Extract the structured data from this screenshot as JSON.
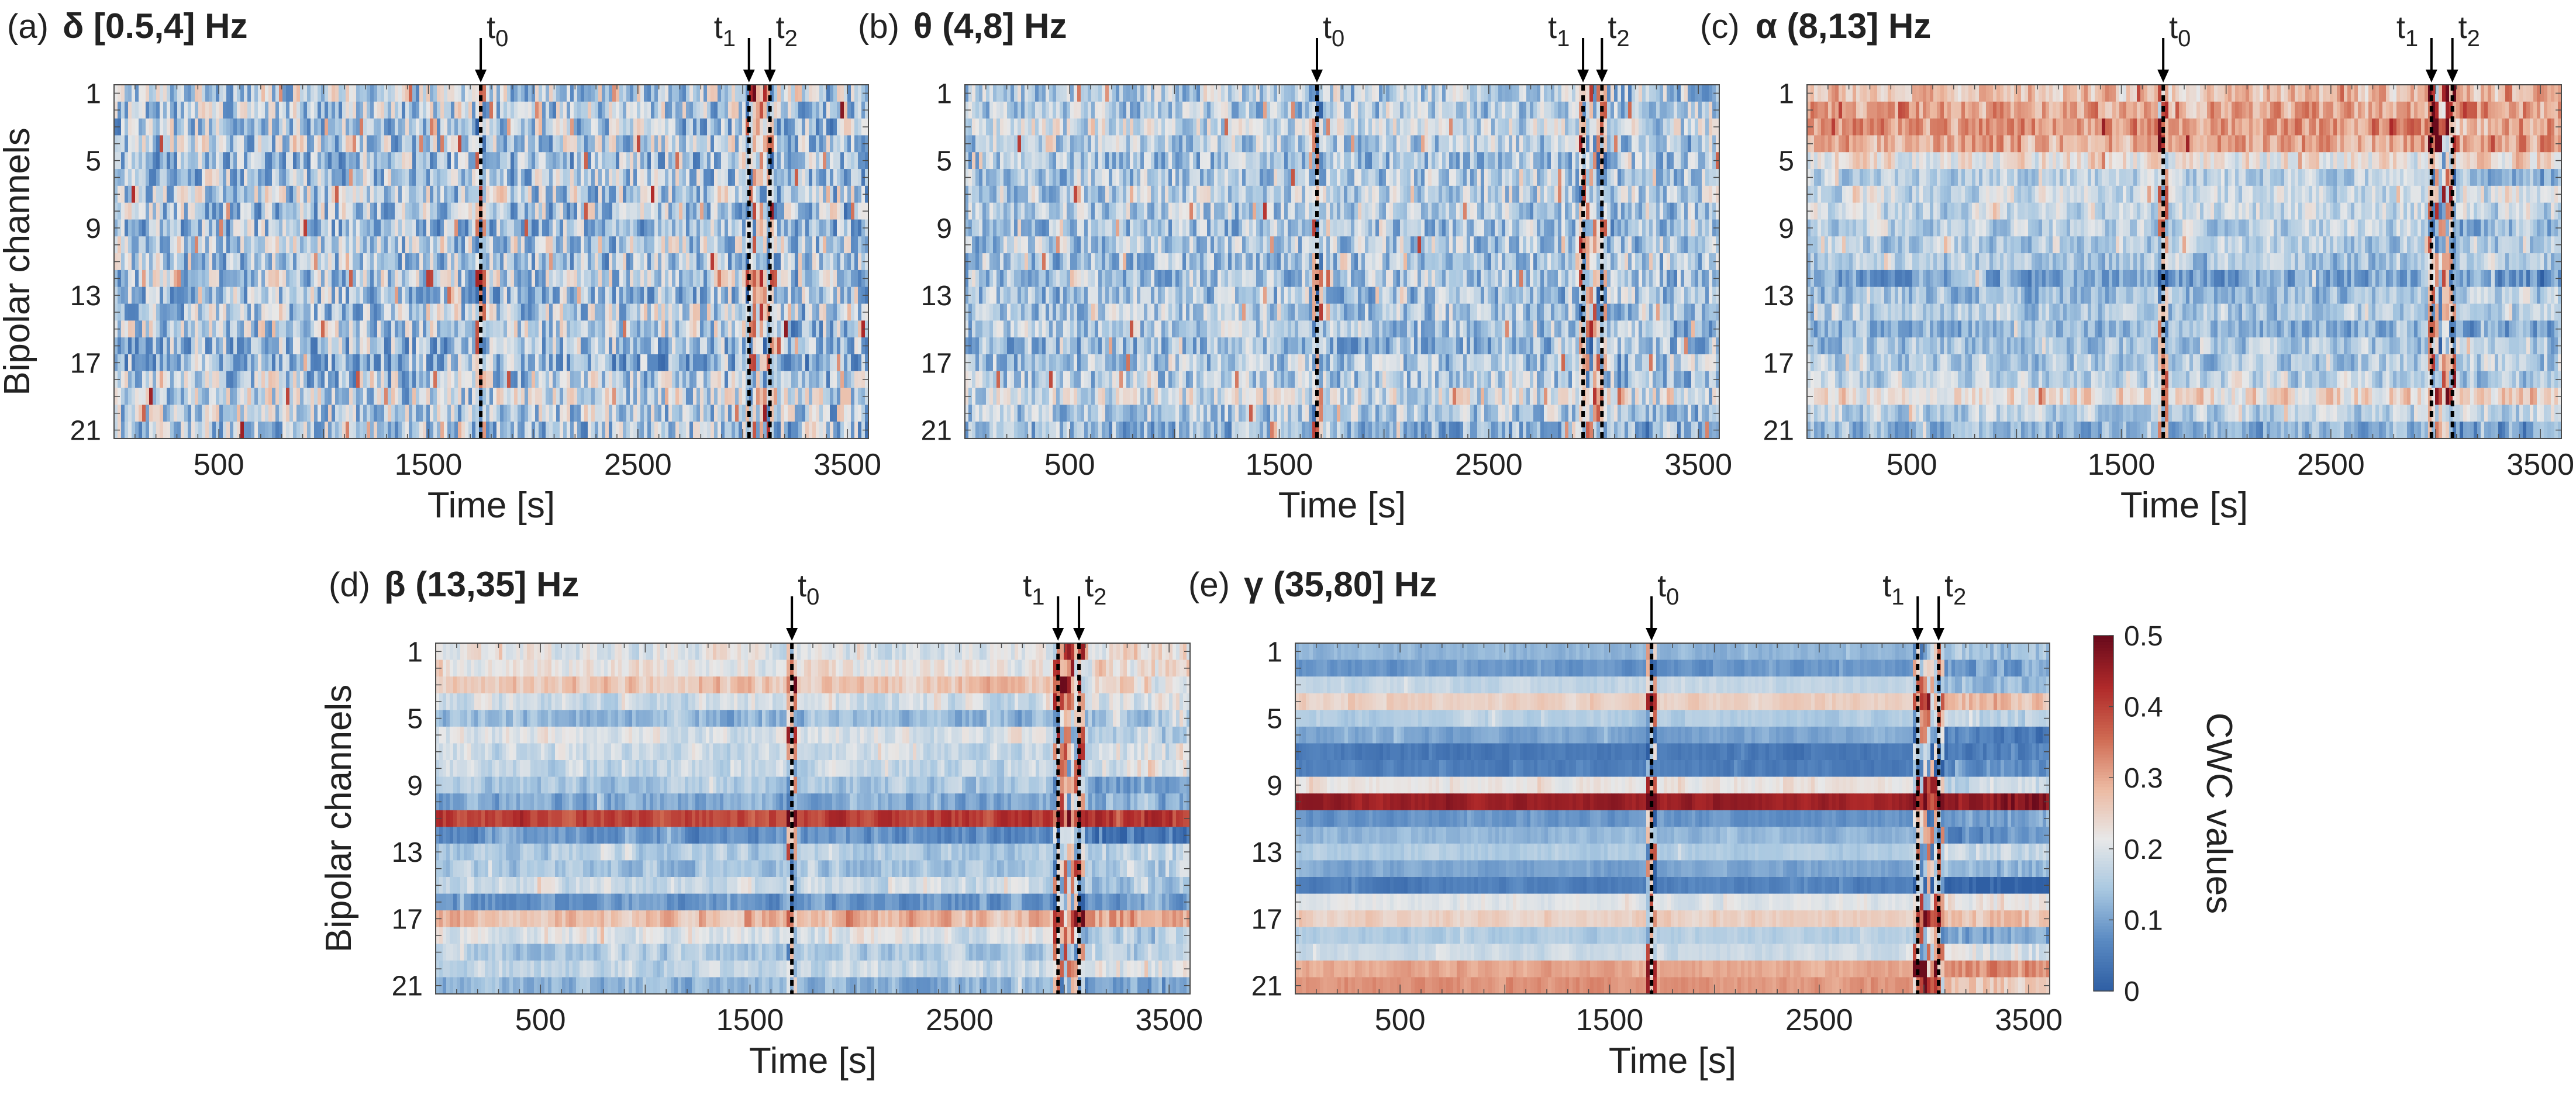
{
  "figure": {
    "shared_ylabel": "Bipolar channels",
    "shared_xlabel": "Time [s]",
    "colorbar": {
      "label": "CWC values",
      "ticks": [
        "0",
        "0.1",
        "0.2",
        "0.3",
        "0.4",
        "0.5"
      ],
      "range": [
        0,
        0.5
      ],
      "colormap": [
        "#2f5fa4",
        "#5b8bc3",
        "#a9c8e1",
        "#e8e8e8",
        "#ecb9a1",
        "#cf6a52",
        "#b02a2a",
        "#6b0b1c"
      ]
    },
    "markers": [
      "t0",
      "t1",
      "t2"
    ]
  },
  "chart_data": [
    {
      "type": "heatmap",
      "panel": "(a)",
      "title": "δ [0.5,4] Hz",
      "xlabel": "Time [s]",
      "ylabel": "Bipolar channels",
      "xlim": [
        0,
        3600
      ],
      "ylim": [
        1,
        21
      ],
      "xticks": [
        500,
        1500,
        2500,
        3500
      ],
      "yticks": [
        1,
        5,
        9,
        13,
        17,
        21
      ],
      "events": {
        "t0": 1750,
        "t1": 3030,
        "t2": 3130
      },
      "baseline": [
        0.17,
        0.16,
        0.15,
        0.16,
        0.14,
        0.15,
        0.16,
        0.15,
        0.14,
        0.16,
        0.15,
        0.16,
        0.15,
        0.16,
        0.17,
        0.14,
        0.13,
        0.15,
        0.17,
        0.16,
        0.15
      ],
      "variability": 0.12,
      "band_structure": 0.2
    },
    {
      "type": "heatmap",
      "panel": "(b)",
      "title": "θ (4,8] Hz",
      "xlabel": "Time [s]",
      "ylabel": "",
      "xlim": [
        0,
        3600
      ],
      "ylim": [
        1,
        21
      ],
      "xticks": [
        500,
        1500,
        2500,
        3500
      ],
      "yticks": [
        1,
        5,
        9,
        13,
        17,
        21
      ],
      "events": {
        "t0": 1680,
        "t1": 2950,
        "t2": 3040
      },
      "baseline": [
        0.15,
        0.15,
        0.18,
        0.16,
        0.14,
        0.15,
        0.16,
        0.15,
        0.14,
        0.15,
        0.14,
        0.15,
        0.14,
        0.15,
        0.15,
        0.13,
        0.14,
        0.15,
        0.18,
        0.15,
        0.13
      ],
      "variability": 0.09,
      "band_structure": 0.2
    },
    {
      "type": "heatmap",
      "panel": "(c)",
      "title": "α (8,13] Hz",
      "xlabel": "Time [s]",
      "ylabel": "",
      "xlim": [
        0,
        3600
      ],
      "ylim": [
        1,
        21
      ],
      "xticks": [
        500,
        1500,
        2500,
        3500
      ],
      "yticks": [
        1,
        5,
        9,
        13,
        17,
        21
      ],
      "events": {
        "t0": 1700,
        "t1": 2980,
        "t2": 3080
      },
      "baseline": [
        0.27,
        0.3,
        0.32,
        0.3,
        0.22,
        0.16,
        0.18,
        0.17,
        0.16,
        0.15,
        0.14,
        0.1,
        0.13,
        0.15,
        0.12,
        0.14,
        0.15,
        0.17,
        0.24,
        0.16,
        0.12
      ],
      "variability": 0.08,
      "band_structure": 0.6
    },
    {
      "type": "heatmap",
      "panel": "(d)",
      "title": "β (13,35] Hz",
      "xlabel": "Time [s]",
      "ylabel": "Bipolar channels",
      "xlim": [
        0,
        3600
      ],
      "ylim": [
        1,
        21
      ],
      "xticks": [
        500,
        1500,
        2500,
        3500
      ],
      "yticks": [
        1,
        5,
        9,
        13,
        17,
        21
      ],
      "events": {
        "t0": 1700,
        "t1": 2970,
        "t2": 3070
      },
      "baseline": [
        0.2,
        0.22,
        0.27,
        0.18,
        0.12,
        0.2,
        0.18,
        0.17,
        0.14,
        0.1,
        0.4,
        0.08,
        0.15,
        0.14,
        0.18,
        0.08,
        0.28,
        0.2,
        0.15,
        0.17,
        0.12
      ],
      "variability": 0.06,
      "band_structure": 0.85
    },
    {
      "type": "heatmap",
      "panel": "(e)",
      "title": "γ (35,80] Hz",
      "xlabel": "Time [s]",
      "ylabel": "",
      "xlim": [
        0,
        3600
      ],
      "ylim": [
        1,
        21
      ],
      "xticks": [
        500,
        1500,
        2500,
        3500
      ],
      "yticks": [
        1,
        5,
        9,
        13,
        17,
        21
      ],
      "events": {
        "t0": 1700,
        "t1": 2970,
        "t2": 3070
      },
      "baseline": [
        0.12,
        0.08,
        0.17,
        0.25,
        0.15,
        0.1,
        0.04,
        0.05,
        0.22,
        0.45,
        0.08,
        0.12,
        0.15,
        0.1,
        0.05,
        0.2,
        0.25,
        0.15,
        0.18,
        0.3,
        0.32
      ],
      "variability": 0.03,
      "band_structure": 1.0
    }
  ]
}
